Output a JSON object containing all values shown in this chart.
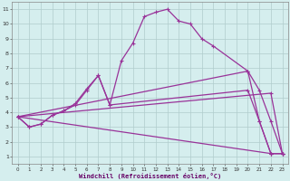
{
  "background_color": "#d5eeee",
  "grid_color": "#b0cccc",
  "line_color": "#993399",
  "xlim": [
    -0.5,
    23.5
  ],
  "ylim": [
    0.5,
    11.5
  ],
  "xticks": [
    0,
    1,
    2,
    3,
    4,
    5,
    6,
    7,
    8,
    9,
    10,
    11,
    12,
    13,
    14,
    15,
    16,
    17,
    18,
    19,
    20,
    21,
    22,
    23
  ],
  "yticks": [
    1,
    2,
    3,
    4,
    5,
    6,
    7,
    8,
    9,
    10,
    11
  ],
  "xlabel": "Windchill (Refroidissement éolien,°C)",
  "curves": [
    {
      "x": [
        0,
        1,
        2,
        3,
        4,
        5,
        6,
        7,
        8,
        9,
        10,
        11,
        12,
        13,
        14,
        15,
        16,
        17,
        20,
        21,
        22,
        23
      ],
      "y": [
        3.7,
        3.0,
        3.2,
        3.8,
        4.1,
        4.6,
        5.6,
        6.5,
        4.5,
        7.5,
        8.7,
        10.5,
        10.8,
        11.0,
        10.2,
        10.0,
        9.0,
        8.5,
        6.8,
        3.4,
        1.2,
        1.2
      ]
    },
    {
      "x": [
        0,
        1,
        2,
        3,
        4,
        5,
        6,
        7,
        8,
        20,
        21,
        22,
        23
      ],
      "y": [
        3.7,
        3.0,
        3.2,
        3.8,
        4.1,
        4.5,
        5.5,
        6.5,
        4.5,
        5.5,
        3.4,
        1.2,
        1.2
      ]
    },
    {
      "x": [
        0,
        20,
        21,
        22,
        23
      ],
      "y": [
        3.7,
        6.8,
        5.5,
        3.4,
        1.2
      ]
    },
    {
      "x": [
        0,
        22,
        23
      ],
      "y": [
        3.7,
        5.3,
        1.2
      ]
    },
    {
      "x": [
        0,
        22,
        23
      ],
      "y": [
        3.7,
        1.2,
        1.2
      ]
    }
  ]
}
